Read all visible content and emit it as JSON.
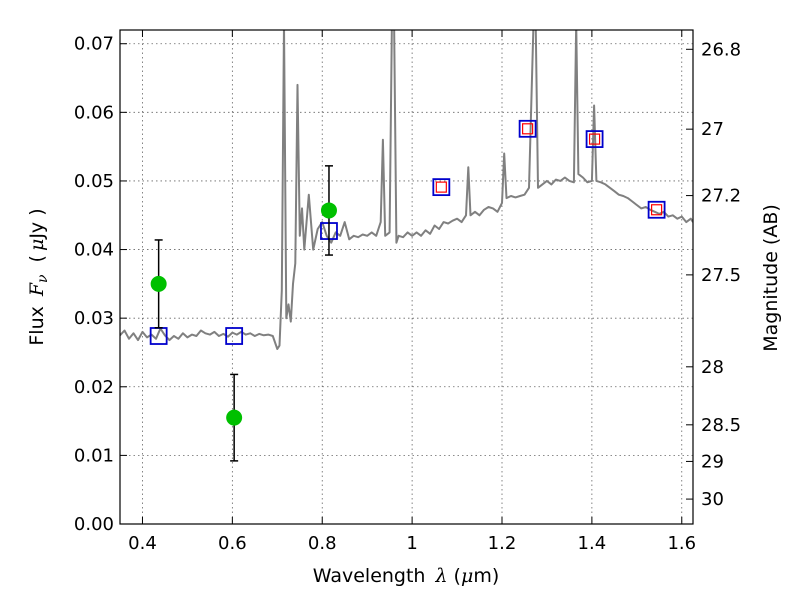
{
  "chart_data": {
    "type": "scatter",
    "xlabel_text": "Wavelength",
    "xlabel_symbol": "λ",
    "xlabel_unit_open": "(",
    "xlabel_mu": "μ",
    "xlabel_unit_close": "m)",
    "ylabel_text": "Flux",
    "ylabel_symbol": "F",
    "ylabel_sub": "ν",
    "ylabel_unit_open": "(",
    "ylabel_mu": "μ",
    "ylabel_unit_close": "Jy )",
    "y2label": "Magnitude (AB)",
    "xlim": [
      0.35,
      1.625
    ],
    "ylim": [
      0.0,
      0.072
    ],
    "xticks": [
      0.4,
      0.6,
      0.8,
      1.0,
      1.2,
      1.4,
      1.6
    ],
    "xtick_labels": [
      "0.4",
      "0.6",
      "0.8",
      "1",
      "1.2",
      "1.4",
      "1.6"
    ],
    "yticks": [
      0.0,
      0.01,
      0.02,
      0.03,
      0.04,
      0.05,
      0.06,
      0.07
    ],
    "ytick_labels": [
      "0.00",
      "0.01",
      "0.02",
      "0.03",
      "0.04",
      "0.05",
      "0.06",
      "0.07"
    ],
    "mag_ticks": [
      26.8,
      27.0,
      27.2,
      27.5,
      28.0,
      28.5,
      29.0,
      30.0
    ],
    "mag_tick_labels": [
      "26.8",
      "27",
      "27.2",
      "27.5",
      "28",
      "28.5",
      "29",
      "30"
    ],
    "grid": true,
    "series": [
      {
        "kind": "line",
        "color": "#808080",
        "x": [
          0.35,
          0.36,
          0.37,
          0.38,
          0.39,
          0.4,
          0.41,
          0.42,
          0.43,
          0.44,
          0.45,
          0.46,
          0.47,
          0.48,
          0.49,
          0.5,
          0.51,
          0.52,
          0.53,
          0.54,
          0.55,
          0.56,
          0.57,
          0.58,
          0.59,
          0.6,
          0.61,
          0.62,
          0.63,
          0.64,
          0.65,
          0.66,
          0.67,
          0.68,
          0.69,
          0.7,
          0.705,
          0.71,
          0.715,
          0.72,
          0.725,
          0.73,
          0.735,
          0.74,
          0.745,
          0.75,
          0.755,
          0.76,
          0.77,
          0.78,
          0.79,
          0.8,
          0.81,
          0.82,
          0.83,
          0.84,
          0.85,
          0.86,
          0.87,
          0.88,
          0.89,
          0.9,
          0.91,
          0.92,
          0.93,
          0.935,
          0.94,
          0.95,
          0.955,
          0.96,
          0.965,
          0.97,
          0.98,
          0.99,
          1.0,
          1.01,
          1.02,
          1.03,
          1.04,
          1.05,
          1.06,
          1.07,
          1.08,
          1.09,
          1.1,
          1.11,
          1.12,
          1.125,
          1.13,
          1.14,
          1.15,
          1.16,
          1.17,
          1.18,
          1.19,
          1.2,
          1.205,
          1.21,
          1.22,
          1.23,
          1.24,
          1.25,
          1.26,
          1.27,
          1.275,
          1.28,
          1.29,
          1.3,
          1.31,
          1.32,
          1.33,
          1.34,
          1.35,
          1.36,
          1.365,
          1.37,
          1.38,
          1.39,
          1.4,
          1.405,
          1.41,
          1.42,
          1.43,
          1.44,
          1.45,
          1.46,
          1.47,
          1.48,
          1.49,
          1.5,
          1.51,
          1.52,
          1.53,
          1.54,
          1.55,
          1.56,
          1.57,
          1.58,
          1.59,
          1.6,
          1.61,
          1.62,
          1.625
        ],
        "y": [
          0.0275,
          0.0282,
          0.027,
          0.0278,
          0.0268,
          0.028,
          0.0272,
          0.0276,
          0.027,
          0.0285,
          0.0275,
          0.0268,
          0.0274,
          0.027,
          0.0278,
          0.0272,
          0.0276,
          0.0274,
          0.0282,
          0.0278,
          0.0276,
          0.028,
          0.0274,
          0.0277,
          0.0273,
          0.0279,
          0.0276,
          0.028,
          0.0276,
          0.0278,
          0.0274,
          0.0277,
          0.0275,
          0.0276,
          0.0274,
          0.0255,
          0.026,
          0.034,
          0.073,
          0.03,
          0.032,
          0.0295,
          0.035,
          0.038,
          0.064,
          0.042,
          0.046,
          0.04,
          0.048,
          0.04,
          0.043,
          0.044,
          0.042,
          0.041,
          0.0425,
          0.042,
          0.044,
          0.0415,
          0.042,
          0.0418,
          0.0422,
          0.042,
          0.0425,
          0.042,
          0.044,
          0.056,
          0.042,
          0.0425,
          0.073,
          0.073,
          0.041,
          0.042,
          0.0418,
          0.0425,
          0.042,
          0.0425,
          0.042,
          0.0428,
          0.0423,
          0.0435,
          0.043,
          0.044,
          0.0438,
          0.0442,
          0.0445,
          0.044,
          0.045,
          0.052,
          0.045,
          0.0455,
          0.045,
          0.0458,
          0.0462,
          0.046,
          0.0455,
          0.0468,
          0.054,
          0.0475,
          0.0478,
          0.0476,
          0.0478,
          0.048,
          0.049,
          0.073,
          0.073,
          0.049,
          0.0495,
          0.05,
          0.0495,
          0.0502,
          0.05,
          0.0505,
          0.05,
          0.0498,
          0.073,
          0.051,
          0.0505,
          0.0498,
          0.05,
          0.061,
          0.05,
          0.0498,
          0.0495,
          0.049,
          0.0485,
          0.048,
          0.0478,
          0.0475,
          0.047,
          0.0465,
          0.046,
          0.0462,
          0.0458,
          0.0455,
          0.0452,
          0.0455,
          0.0448,
          0.045,
          0.0445,
          0.0448,
          0.044,
          0.0445,
          0.044
        ]
      },
      {
        "kind": "open-square",
        "color": "#0000cc",
        "x": [
          0.436,
          0.604,
          0.815,
          1.065,
          1.257,
          1.406,
          1.544
        ],
        "y": [
          0.0274,
          0.0274,
          0.0427,
          0.0491,
          0.0576,
          0.0561,
          0.0458
        ]
      },
      {
        "kind": "open-square-small",
        "color": "#ff0000",
        "x": [
          1.065,
          1.257,
          1.406,
          1.544
        ],
        "y": [
          0.0491,
          0.0576,
          0.0561,
          0.0458
        ]
      },
      {
        "kind": "filled-circle-errorbar",
        "color": "#00c000",
        "x": [
          0.436,
          0.604,
          0.815
        ],
        "y": [
          0.035,
          0.0155,
          0.0457
        ],
        "yerr": [
          0.0064,
          0.0063,
          0.0065
        ]
      }
    ]
  }
}
